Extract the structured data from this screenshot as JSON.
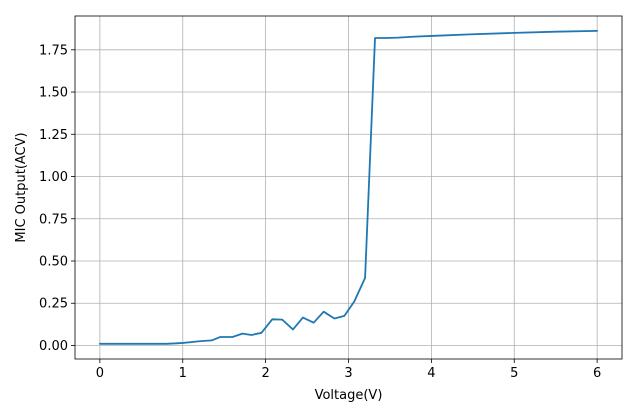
{
  "chart_data": {
    "type": "line",
    "title": "",
    "xlabel": "Voltage(V)",
    "ylabel": "MIC Output(ACV)",
    "xlim": [
      -0.3,
      6.3
    ],
    "ylim": [
      -0.08,
      1.95
    ],
    "xticks": [
      0,
      1,
      2,
      3,
      4,
      5,
      6
    ],
    "xtick_labels": [
      "0",
      "1",
      "2",
      "3",
      "4",
      "5",
      "6"
    ],
    "yticks": [
      0.0,
      0.25,
      0.5,
      0.75,
      1.0,
      1.25,
      1.5,
      1.75
    ],
    "ytick_labels": [
      "0.00",
      "0.25",
      "0.50",
      "0.75",
      "1.00",
      "1.25",
      "1.50",
      "1.75"
    ],
    "grid": true,
    "legend": "none",
    "series": [
      {
        "color": "#1f77b4",
        "x": [
          0,
          0.1,
          0.2,
          0.3,
          0.4,
          0.5,
          0.6,
          0.7,
          0.8,
          0.9,
          1.0,
          1.1,
          1.2,
          1.35,
          1.45,
          1.6,
          1.72,
          1.83,
          1.95,
          2.08,
          2.2,
          2.33,
          2.45,
          2.58,
          2.7,
          2.83,
          2.95,
          3.07,
          3.2,
          3.32,
          3.45,
          3.6,
          3.8,
          4.0,
          4.5,
          5.0,
          5.5,
          6.0
        ],
        "y": [
          0.01,
          0.01,
          0.01,
          0.01,
          0.01,
          0.01,
          0.01,
          0.01,
          0.01,
          0.012,
          0.015,
          0.02,
          0.025,
          0.03,
          0.05,
          0.05,
          0.07,
          0.062,
          0.075,
          0.155,
          0.153,
          0.095,
          0.165,
          0.135,
          0.2,
          0.16,
          0.175,
          0.26,
          0.4,
          1.82,
          1.82,
          1.822,
          1.828,
          1.832,
          1.842,
          1.85,
          1.857,
          1.862
        ]
      }
    ]
  }
}
